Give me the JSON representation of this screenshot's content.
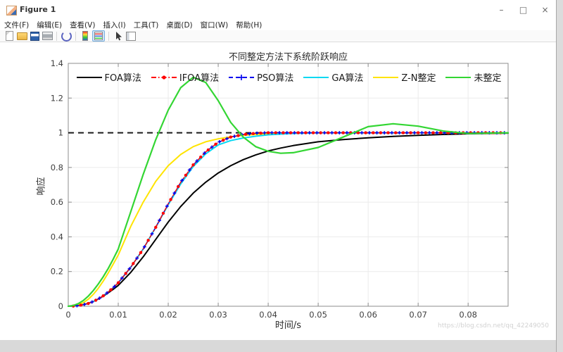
{
  "window": {
    "title": "Figure 1",
    "controls": [
      {
        "name": "minimize-button",
        "glyph": "–"
      },
      {
        "name": "maximize-button",
        "glyph": "□"
      },
      {
        "name": "close-button",
        "glyph": "×"
      }
    ]
  },
  "menu_bar": {
    "items": [
      "文件(F)",
      "编辑(E)",
      "查看(V)",
      "插入(I)",
      "工具(T)",
      "桌面(D)",
      "窗口(W)",
      "帮助(H)"
    ]
  },
  "toolbar": {
    "icons": [
      "new-document-icon",
      "open-folder-icon",
      "save-icon",
      "print-icon",
      "separator",
      "link-plot-icon",
      "separator",
      "insert-colorbar-icon",
      "insert-legend-icon",
      "separator",
      "edit-plot-cursor-icon",
      "property-inspector-icon"
    ],
    "pressed_icon": "insert-legend-icon"
  },
  "watermark": {
    "text": "https://blog.csdn.net/qq_42249050"
  },
  "chart_data": {
    "type": "line",
    "title": "不同整定方法下系统阶跃响应",
    "xlabel": "时间/s",
    "ylabel": "响应",
    "xlim": [
      0,
      0.088
    ],
    "ylim": [
      0,
      1.4
    ],
    "xticks": [
      0,
      0.01,
      0.02,
      0.03,
      0.04,
      0.05,
      0.06,
      0.07,
      0.08
    ],
    "yticks": [
      0,
      0.2,
      0.4,
      0.6,
      0.8,
      1,
      1.2,
      1.4
    ],
    "grid": true,
    "legend_position": "top-inside-horizontal",
    "reference_line": {
      "y": 1,
      "style": "dashed",
      "color": "#1a1a1a"
    },
    "x": [
      0,
      0.001,
      0.002,
      0.003,
      0.004,
      0.005,
      0.006,
      0.007,
      0.008,
      0.009,
      0.01,
      0.0125,
      0.015,
      0.0175,
      0.02,
      0.0225,
      0.025,
      0.0275,
      0.03,
      0.0325,
      0.035,
      0.0375,
      0.04,
      0.0425,
      0.045,
      0.05,
      0.055,
      0.06,
      0.065,
      0.07,
      0.075,
      0.08,
      0.088
    ],
    "series": [
      {
        "name": "FOA算法",
        "color": "#000000",
        "style": "solid",
        "marker": "none",
        "y": [
          0,
          0.001,
          0.004,
          0.009,
          0.017,
          0.027,
          0.041,
          0.058,
          0.077,
          0.098,
          0.12,
          0.195,
          0.285,
          0.385,
          0.485,
          0.575,
          0.652,
          0.715,
          0.768,
          0.81,
          0.845,
          0.872,
          0.895,
          0.912,
          0.926,
          0.948,
          0.961,
          0.971,
          0.979,
          0.985,
          0.99,
          0.994,
          0.998
        ]
      },
      {
        "name": "IFOA算法",
        "color": "#ff0000",
        "style": "dash-dot",
        "marker": "circle",
        "y": [
          0,
          0.001,
          0.004,
          0.009,
          0.016,
          0.027,
          0.042,
          0.06,
          0.082,
          0.107,
          0.135,
          0.225,
          0.33,
          0.455,
          0.59,
          0.715,
          0.815,
          0.89,
          0.945,
          0.975,
          0.99,
          0.997,
          1.0,
          1.0,
          1.0,
          1.0,
          1.0,
          1.0,
          1.0,
          1.0,
          1.0,
          1.0,
          1.0
        ]
      },
      {
        "name": "PSO算法",
        "color": "#0000ee",
        "style": "dashed",
        "marker": "plus",
        "y": [
          0,
          0.001,
          0.004,
          0.009,
          0.016,
          0.027,
          0.042,
          0.06,
          0.082,
          0.107,
          0.135,
          0.225,
          0.33,
          0.455,
          0.59,
          0.715,
          0.815,
          0.89,
          0.945,
          0.975,
          0.99,
          0.997,
          1.0,
          1.0,
          1.0,
          1.0,
          1.0,
          1.0,
          1.0,
          1.0,
          1.0,
          1.0,
          1.0
        ]
      },
      {
        "name": "GA算法",
        "color": "#06d8f2",
        "style": "solid",
        "marker": "none",
        "y": [
          0,
          0.001,
          0.004,
          0.009,
          0.016,
          0.027,
          0.042,
          0.06,
          0.082,
          0.107,
          0.135,
          0.225,
          0.33,
          0.455,
          0.585,
          0.705,
          0.805,
          0.878,
          0.93,
          0.955,
          0.97,
          0.98,
          0.988,
          0.992,
          0.996,
          1.0,
          1.0,
          1.0,
          1.0,
          1.0,
          1.0,
          1.0,
          1.0
        ]
      },
      {
        "name": "Z-N整定",
        "color": "#ffe400",
        "style": "solid",
        "marker": "none",
        "y": [
          0,
          0.002,
          0.008,
          0.02,
          0.04,
          0.068,
          0.103,
          0.145,
          0.192,
          0.243,
          0.295,
          0.46,
          0.6,
          0.72,
          0.81,
          0.875,
          0.92,
          0.948,
          0.965,
          0.977,
          0.985,
          0.99,
          0.994,
          0.996,
          0.998,
          1.0,
          1.0,
          1.0,
          1.0,
          1.0,
          1.0,
          1.0,
          1.0
        ]
      },
      {
        "name": "未整定",
        "color": "#33d633",
        "style": "solid",
        "marker": "none",
        "y": [
          0,
          0.004,
          0.015,
          0.033,
          0.058,
          0.09,
          0.128,
          0.17,
          0.218,
          0.272,
          0.33,
          0.545,
          0.76,
          0.96,
          1.13,
          1.26,
          1.32,
          1.29,
          1.185,
          1.06,
          0.975,
          0.92,
          0.893,
          0.882,
          0.885,
          0.915,
          0.975,
          1.035,
          1.052,
          1.038,
          1.01,
          0.996,
          1.0
        ]
      }
    ]
  }
}
